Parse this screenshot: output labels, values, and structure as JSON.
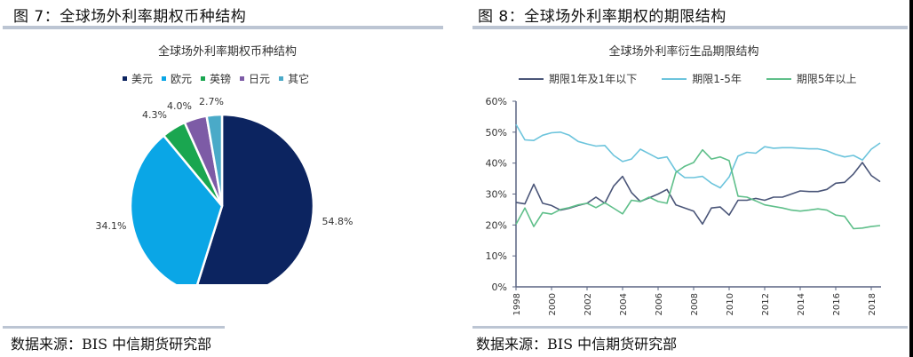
{
  "left_panel": {
    "figure_title": "图 7：全球场外利率期权币种结构",
    "source": "数据来源：BIS  中信期货研究部"
  },
  "right_panel": {
    "figure_title": "图 8：全球场外利率期权的期限结构",
    "source": "数据来源：BIS  中信期货研究部"
  },
  "chart_data": [
    {
      "type": "pie",
      "title": "全球场外利率期权币种结构",
      "legend_position": "top",
      "categories": [
        "美元",
        "欧元",
        "英镑",
        "日元",
        "其它"
      ],
      "values": [
        54.8,
        34.1,
        4.3,
        4.0,
        2.7
      ],
      "labels": [
        "54.8%",
        "34.1%",
        "4.3%",
        "4.0%",
        "2.7%"
      ],
      "colors": [
        "#0c2460",
        "#0aa6e6",
        "#1aa650",
        "#7d5ba6",
        "#4aaac8"
      ]
    },
    {
      "type": "line",
      "title": "全球场外利率衍生品期限结构",
      "legend_position": "top",
      "xlabel": "",
      "ylabel": "",
      "ylim": [
        0,
        60
      ],
      "yticks": [
        "0%",
        "10%",
        "20%",
        "30%",
        "40%",
        "50%",
        "60%"
      ],
      "xticks": [
        "1998",
        "2000",
        "2002",
        "2004",
        "2006",
        "2008",
        "2010",
        "2012",
        "2014",
        "2016",
        "2018"
      ],
      "x": [
        1998.0,
        1998.5,
        1999.0,
        1999.5,
        2000.0,
        2000.5,
        2001.0,
        2001.5,
        2002.0,
        2002.5,
        2003.0,
        2003.5,
        2004.0,
        2004.5,
        2005.0,
        2005.5,
        2006.0,
        2006.5,
        2007.0,
        2007.5,
        2008.0,
        2008.5,
        2009.0,
        2009.5,
        2010.0,
        2010.5,
        2011.0,
        2011.5,
        2012.0,
        2012.5,
        2013.0,
        2013.5,
        2014.0,
        2014.5,
        2015.0,
        2015.5,
        2016.0,
        2016.5,
        2017.0,
        2017.5,
        2018.0,
        2018.5
      ],
      "series": [
        {
          "name": "期限1年及1年以下",
          "color": "#4a5578",
          "values": [
            27.3,
            26.8,
            33.2,
            27.0,
            26.3,
            24.8,
            25.4,
            26.3,
            27.0,
            29.0,
            27.0,
            32.6,
            35.7,
            30.5,
            27.6,
            28.8,
            30.0,
            31.5,
            26.5,
            25.5,
            24.5,
            20.3,
            25.5,
            25.8,
            23.2,
            28.0,
            28.0,
            28.6,
            28.0,
            29.0,
            29.0,
            30.0,
            31.0,
            30.8,
            30.8,
            31.5,
            33.5,
            33.8,
            36.5,
            40.2,
            36.0,
            34.0
          ]
        },
        {
          "name": "期限1-5年",
          "color": "#6cc4dc",
          "values": [
            52.5,
            47.5,
            47.3,
            49.0,
            49.8,
            50.0,
            49.0,
            47.0,
            46.2,
            45.5,
            45.7,
            42.5,
            40.5,
            41.3,
            44.5,
            43.0,
            41.5,
            42.0,
            37.5,
            35.3,
            35.3,
            35.7,
            33.5,
            32.0,
            35.5,
            42.3,
            43.5,
            43.2,
            45.3,
            44.8,
            45.0,
            45.0,
            44.8,
            44.6,
            44.6,
            44.0,
            42.8,
            42.0,
            42.5,
            41.0,
            44.5,
            46.5
          ]
        },
        {
          "name": "期限5年以上",
          "color": "#5fbf8a",
          "values": [
            20.2,
            25.5,
            19.5,
            24.0,
            23.5,
            25.0,
            25.6,
            26.5,
            27.0,
            25.6,
            27.2,
            25.4,
            23.6,
            28.0,
            27.6,
            29.0,
            27.6,
            27.0,
            37.0,
            39.0,
            40.2,
            44.3,
            41.3,
            42.0,
            40.8,
            29.3,
            29.0,
            27.8,
            26.5,
            26.0,
            25.5,
            24.8,
            24.5,
            24.8,
            25.2,
            24.8,
            23.2,
            22.8,
            18.8,
            19.0,
            19.5,
            19.8
          ]
        }
      ]
    }
  ]
}
